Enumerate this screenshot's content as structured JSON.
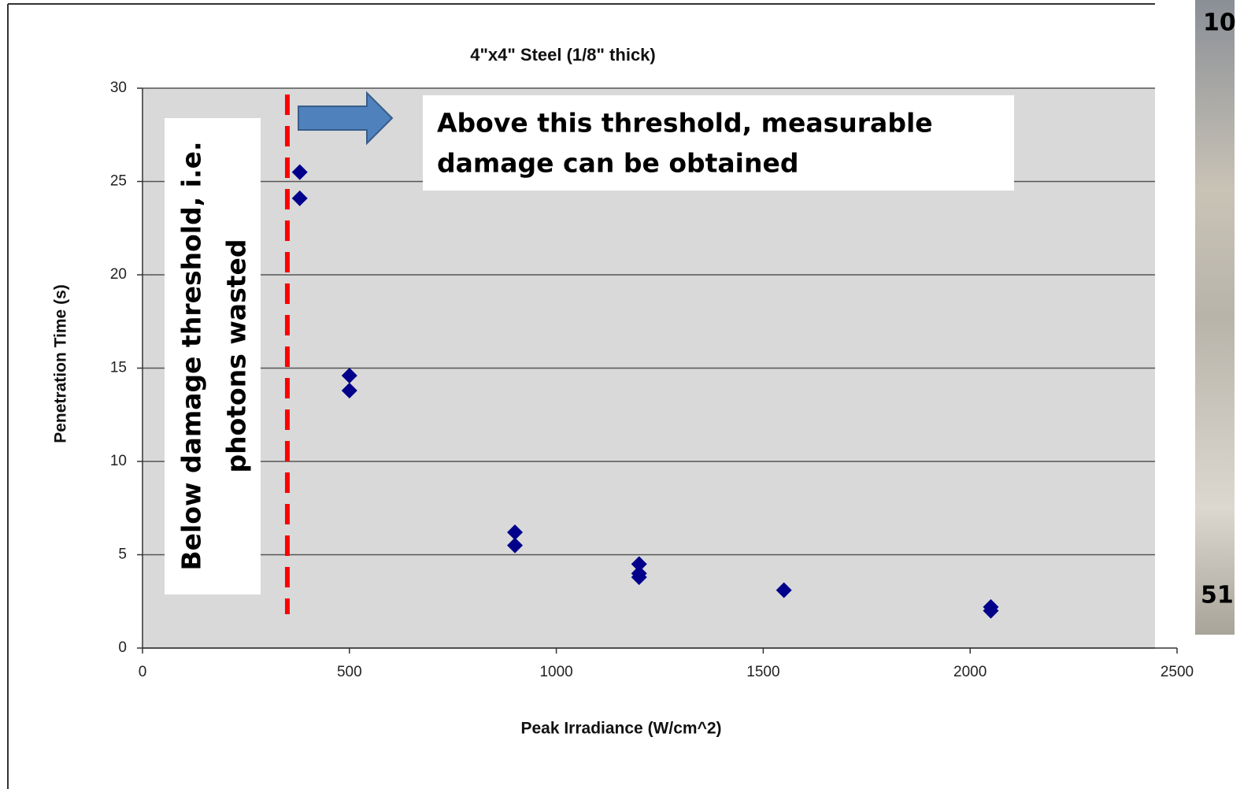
{
  "chart_data": {
    "type": "scatter",
    "title": "4\"x4\" Steel (1/8\" thick)",
    "x_label": "Peak Irradiance (W/cm^2)",
    "y_label": "Penetration Time (s)",
    "x": [
      380,
      380,
      500,
      500,
      900,
      900,
      1200,
      1200,
      1200,
      1550,
      2050,
      2050
    ],
    "values": [
      25.5,
      24.1,
      14.6,
      13.8,
      6.2,
      5.5,
      4.5,
      4.0,
      3.8,
      3.1,
      2.2,
      2.0
    ],
    "color": "#00008b",
    "xlim": [
      0,
      2500
    ],
    "ylim": [
      0,
      30
    ],
    "xticks": [
      0,
      500,
      1000,
      1500,
      2000,
      2500
    ],
    "yticks": [
      0,
      5,
      10,
      15,
      20,
      25,
      30
    ],
    "grid": true,
    "threshold_x": 350,
    "threshold_color": "#ff0000",
    "annotation_left": [
      "Below damage threshold, i.e.",
      "photons wasted"
    ],
    "annotation_right": [
      "Above this threshold, measurable",
      "damage can be obtained"
    ],
    "side_labels": [
      "10",
      "51"
    ]
  }
}
